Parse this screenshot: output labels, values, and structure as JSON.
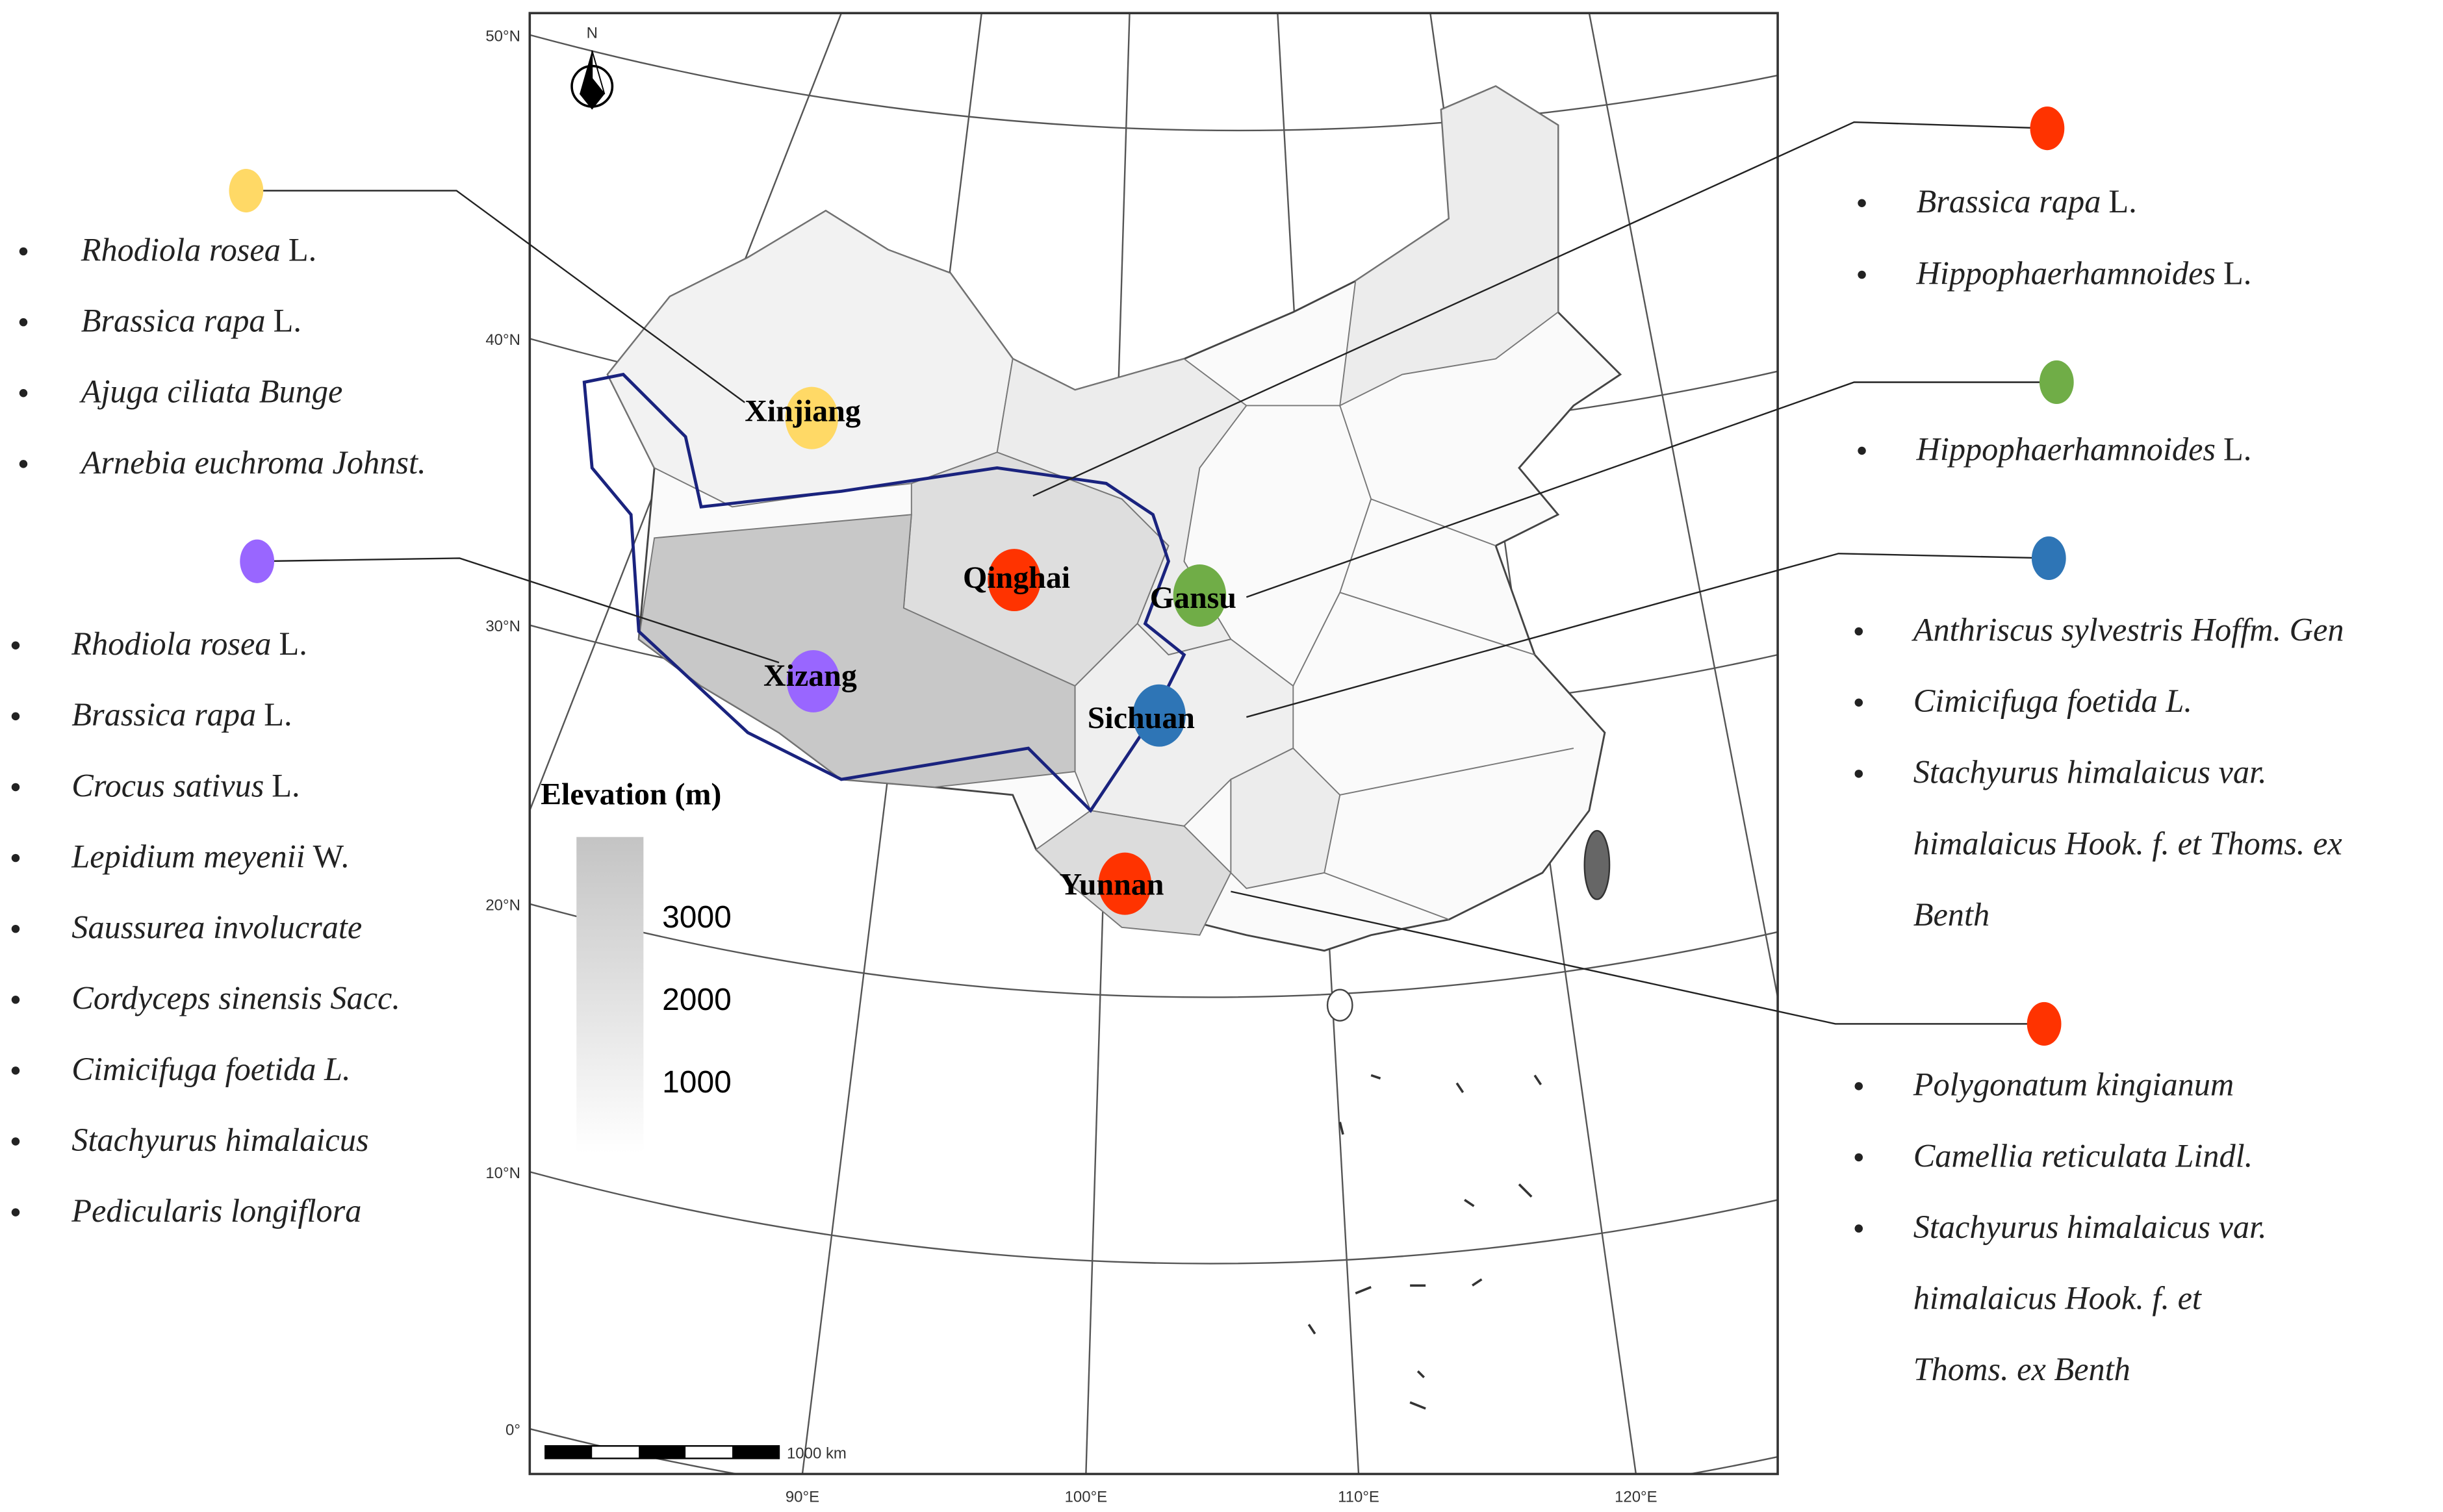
{
  "map": {
    "north": "N",
    "lat_labels": [
      "50°N",
      "40°N",
      "30°N",
      "20°N",
      "10°N",
      "0°"
    ],
    "lon_labels": [
      "90°E",
      "100°E",
      "110°E",
      "120°E"
    ],
    "scale_label": "1000 km",
    "elevation": {
      "title": "Elevation (m)",
      "ticks": [
        3000,
        2000,
        1000
      ]
    }
  },
  "regions": [
    {
      "name": "Xinjiang",
      "color": "#ffd966",
      "species": [
        {
          "name": "Rhodiola rosea",
          "author": "L."
        },
        {
          "name": "Brassica rapa",
          "author": "L."
        },
        {
          "name": "Ajuga ciliata Bunge"
        },
        {
          "name": "Arnebia euchroma Johnst."
        }
      ]
    },
    {
      "name": "Xizang",
      "color": "#9966ff",
      "species": [
        {
          "name": "Rhodiola rosea",
          "author": "L."
        },
        {
          "name": "Brassica rapa",
          "author": "L."
        },
        {
          "name": "Crocus sativus",
          "author": "L."
        },
        {
          "name": "Lepidium meyenii",
          "author": "W."
        },
        {
          "name": "Saussurea involucrate"
        },
        {
          "name": "Cordyceps sinensis Sacc."
        },
        {
          "name": "Cimicifuga foetida L."
        },
        {
          "name": "Stachyurus himalaicus"
        },
        {
          "name": "Pedicularis longiflora"
        }
      ]
    },
    {
      "name": "Qinghai",
      "color": "#ff3300",
      "species": [
        {
          "name": "Brassica rapa",
          "author": "L."
        },
        {
          "name": "Hippophaerhamnoides",
          "author": "L."
        }
      ]
    },
    {
      "name": "Gansu",
      "color": "#70ad47",
      "species": [
        {
          "name": "Hippophaerhamnoides",
          "author": "L."
        }
      ]
    },
    {
      "name": "Sichuan",
      "color": "#2e75b6",
      "species": [
        {
          "name": "Anthriscus sylvestris  Hoffm. Gen"
        },
        {
          "name": "Cimicifuga foetida L."
        },
        {
          "name": [
            "Stachyurus himalaicus var.",
            "himalaicus Hook. f. et Thoms. ex",
            "Benth"
          ]
        }
      ]
    },
    {
      "name": "Yunnan",
      "color": "#ff3300",
      "species": [
        {
          "name": "Polygonatum kingianum"
        },
        {
          "name": "Camellia reticulata Lindl."
        },
        {
          "name": [
            "Stachyurus himalaicus var.",
            "himalaicus Hook. f. et",
            "Thoms. ex Benth"
          ]
        }
      ]
    }
  ]
}
